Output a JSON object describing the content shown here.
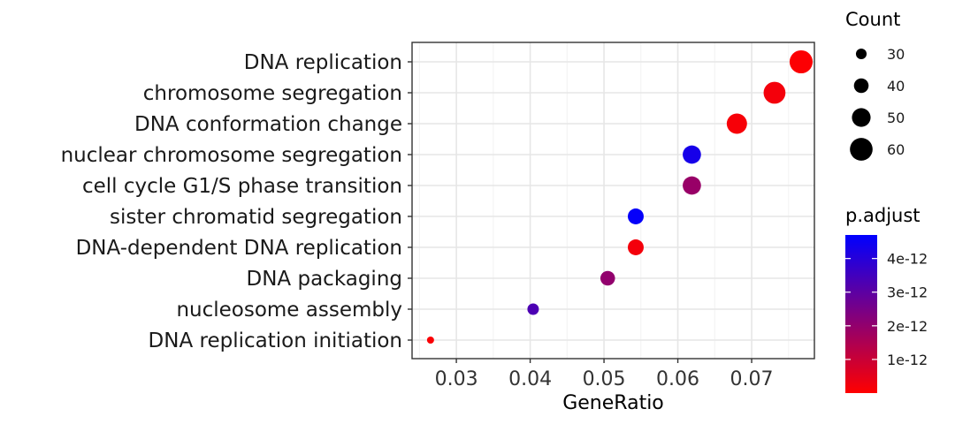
{
  "chart_data": {
    "type": "scatter",
    "xlabel": "GeneRatio",
    "ylabel": "",
    "xlim": [
      0.024,
      0.0785
    ],
    "x_ticks": [
      "0.03",
      "0.04",
      "0.05",
      "0.06",
      "0.07"
    ],
    "x_tick_values": [
      0.03,
      0.04,
      0.05,
      0.06,
      0.07
    ],
    "grid": true,
    "categories": [
      "DNA replication",
      "chromosome segregation",
      "DNA conformation change",
      "nuclear chromosome segregation",
      "cell cycle G1/S phase transition",
      "sister chromatid segregation",
      "DNA-dependent DNA replication",
      "DNA packaging",
      "nucleosome assembly",
      "DNA replication initiation"
    ],
    "points": [
      {
        "term": "DNA replication",
        "gene_ratio": 0.0767,
        "count": 61,
        "p_adjust": 5e-14
      },
      {
        "term": "chromosome segregation",
        "gene_ratio": 0.0731,
        "count": 58,
        "p_adjust": 2e-13
      },
      {
        "term": "DNA conformation change",
        "gene_ratio": 0.068,
        "count": 54,
        "p_adjust": 1.5e-13
      },
      {
        "term": "nuclear chromosome segregation",
        "gene_ratio": 0.0619,
        "count": 49,
        "p_adjust": 4.3e-12
      },
      {
        "term": "cell cycle G1/S phase transition",
        "gene_ratio": 0.0619,
        "count": 49,
        "p_adjust": 1.9e-12
      },
      {
        "term": "sister chromatid segregation",
        "gene_ratio": 0.0543,
        "count": 43,
        "p_adjust": 4.6e-12
      },
      {
        "term": "DNA-dependent DNA replication",
        "gene_ratio": 0.0543,
        "count": 43,
        "p_adjust": 2e-13
      },
      {
        "term": "DNA packaging",
        "gene_ratio": 0.0505,
        "count": 40,
        "p_adjust": 2e-12
      },
      {
        "term": "nucleosome assembly",
        "gene_ratio": 0.0404,
        "count": 32,
        "p_adjust": 3.3e-12
      },
      {
        "term": "DNA replication initiation",
        "gene_ratio": 0.0265,
        "count": 21,
        "p_adjust": 1e-13
      }
    ],
    "size_legend": {
      "title": "Count",
      "values": [
        30,
        40,
        50,
        60
      ],
      "labels": [
        "30",
        "40",
        "50",
        "60"
      ]
    },
    "color_legend": {
      "title": "p.adjust",
      "range": [
        0,
        4.7e-12
      ],
      "low_color": "#ff0000",
      "high_color": "#0000ff",
      "tick_values": [
        1e-12,
        2e-12,
        3e-12,
        4e-12
      ],
      "tick_labels": [
        "1e-12",
        "2e-12",
        "3e-12",
        "4e-12"
      ]
    }
  }
}
